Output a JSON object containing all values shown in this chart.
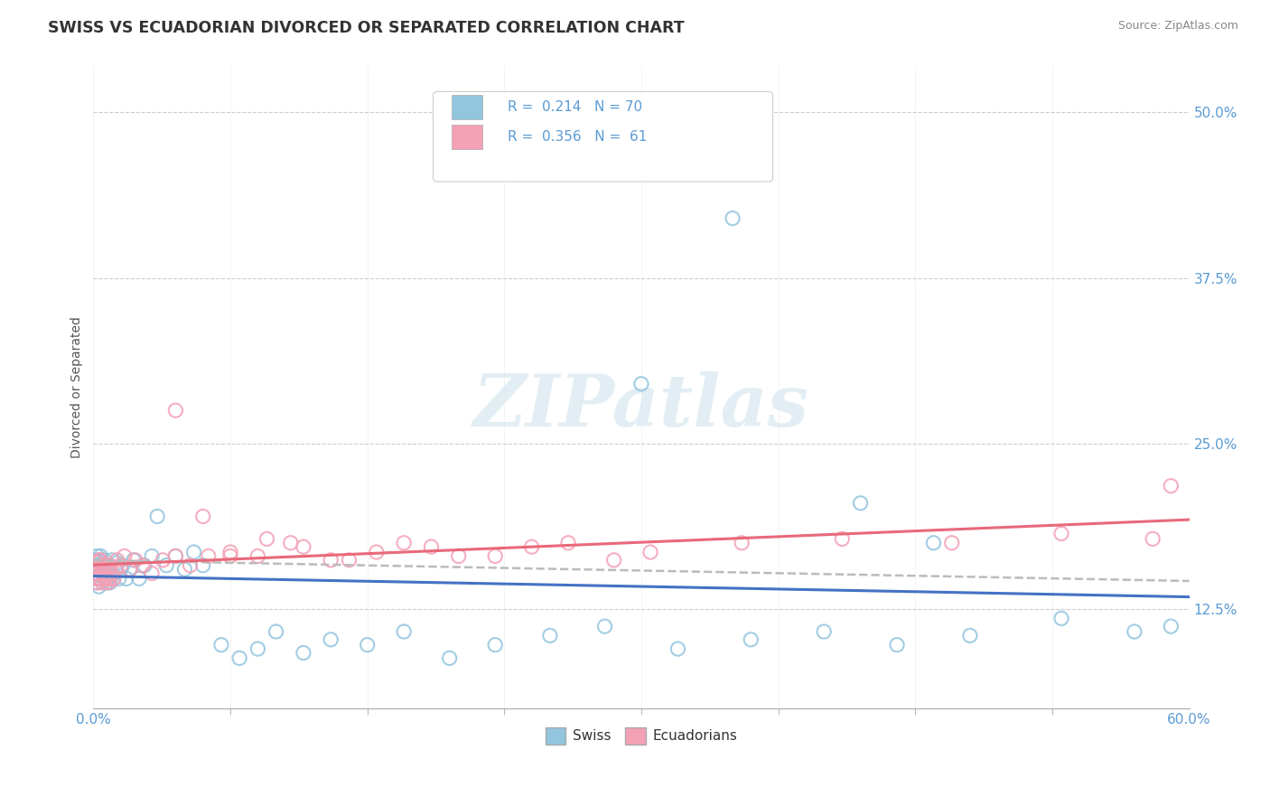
{
  "title": "SWISS VS ECUADORIAN DIVORCED OR SEPARATED CORRELATION CHART",
  "source": "Source: ZipAtlas.com",
  "ylabel": "Divorced or Separated",
  "xmin": 0.0,
  "xmax": 0.6,
  "ymin": 0.05,
  "ymax": 0.535,
  "yticks": [
    0.125,
    0.25,
    0.375,
    0.5
  ],
  "ytick_labels": [
    "12.5%",
    "25.0%",
    "37.5%",
    "50.0%"
  ],
  "swiss_R": 0.214,
  "swiss_N": 70,
  "ecuadorian_R": 0.356,
  "ecuadorian_N": 61,
  "swiss_color": "#92C5DE",
  "ecuadorian_color": "#F4A0B5",
  "swiss_line_color": "#4472C4",
  "ecuadorian_line_color": "#E8697A",
  "dashed_line_color": "#BBBBBB",
  "watermark": "ZIPatlas",
  "background_color": "#FFFFFF",
  "grid_color": "#CCCCCC",
  "title_color": "#333333",
  "tick_color": "#5B9BD5",
  "source_color": "#888888",
  "swiss_x": [
    0.001,
    0.001,
    0.001,
    0.002,
    0.002,
    0.002,
    0.002,
    0.003,
    0.003,
    0.003,
    0.003,
    0.004,
    0.004,
    0.004,
    0.005,
    0.005,
    0.005,
    0.006,
    0.006,
    0.006,
    0.007,
    0.007,
    0.008,
    0.008,
    0.009,
    0.009,
    0.01,
    0.01,
    0.011,
    0.012,
    0.013,
    0.014,
    0.015,
    0.016,
    0.018,
    0.02,
    0.022,
    0.025,
    0.028,
    0.032,
    0.035,
    0.04,
    0.045,
    0.05,
    0.055,
    0.06,
    0.07,
    0.08,
    0.09,
    0.1,
    0.115,
    0.13,
    0.15,
    0.17,
    0.195,
    0.22,
    0.25,
    0.28,
    0.32,
    0.36,
    0.4,
    0.44,
    0.48,
    0.53,
    0.57,
    0.59,
    0.3,
    0.35,
    0.42,
    0.46
  ],
  "swiss_y": [
    0.148,
    0.155,
    0.162,
    0.145,
    0.152,
    0.158,
    0.165,
    0.148,
    0.155,
    0.162,
    0.142,
    0.15,
    0.158,
    0.165,
    0.145,
    0.153,
    0.16,
    0.148,
    0.155,
    0.162,
    0.145,
    0.152,
    0.148,
    0.158,
    0.145,
    0.155,
    0.15,
    0.162,
    0.148,
    0.155,
    0.16,
    0.148,
    0.155,
    0.158,
    0.148,
    0.155,
    0.162,
    0.148,
    0.158,
    0.165,
    0.195,
    0.158,
    0.165,
    0.155,
    0.168,
    0.158,
    0.098,
    0.088,
    0.095,
    0.108,
    0.092,
    0.102,
    0.098,
    0.108,
    0.088,
    0.098,
    0.105,
    0.112,
    0.095,
    0.102,
    0.108,
    0.098,
    0.105,
    0.118,
    0.108,
    0.112,
    0.295,
    0.42,
    0.205,
    0.175
  ],
  "ecuadorian_x": [
    0.001,
    0.001,
    0.002,
    0.002,
    0.002,
    0.003,
    0.003,
    0.003,
    0.004,
    0.004,
    0.004,
    0.005,
    0.005,
    0.005,
    0.006,
    0.006,
    0.007,
    0.007,
    0.008,
    0.008,
    0.009,
    0.009,
    0.01,
    0.011,
    0.012,
    0.013,
    0.015,
    0.017,
    0.02,
    0.023,
    0.027,
    0.032,
    0.038,
    0.045,
    0.053,
    0.063,
    0.075,
    0.09,
    0.108,
    0.13,
    0.155,
    0.185,
    0.22,
    0.26,
    0.305,
    0.355,
    0.41,
    0.47,
    0.53,
    0.58,
    0.045,
    0.06,
    0.075,
    0.095,
    0.115,
    0.14,
    0.17,
    0.2,
    0.24,
    0.285,
    0.59
  ],
  "ecuadorian_y": [
    0.148,
    0.155,
    0.145,
    0.152,
    0.16,
    0.148,
    0.155,
    0.162,
    0.148,
    0.155,
    0.162,
    0.145,
    0.152,
    0.158,
    0.148,
    0.155,
    0.148,
    0.158,
    0.145,
    0.155,
    0.148,
    0.158,
    0.152,
    0.148,
    0.155,
    0.162,
    0.158,
    0.165,
    0.155,
    0.162,
    0.158,
    0.152,
    0.162,
    0.165,
    0.158,
    0.165,
    0.168,
    0.165,
    0.175,
    0.162,
    0.168,
    0.172,
    0.165,
    0.175,
    0.168,
    0.175,
    0.178,
    0.175,
    0.182,
    0.178,
    0.275,
    0.195,
    0.165,
    0.178,
    0.172,
    0.162,
    0.175,
    0.165,
    0.172,
    0.162,
    0.218
  ]
}
